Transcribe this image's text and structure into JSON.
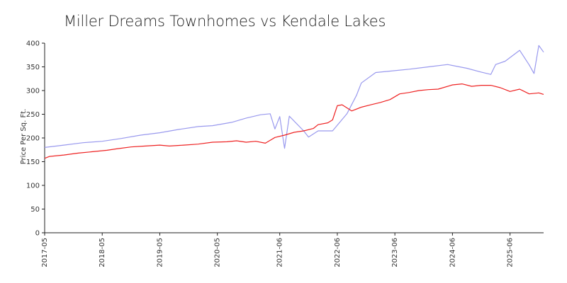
{
  "chart_data": {
    "type": "line",
    "title": "Miller Dreams Townhomes vs Kendale Lakes",
    "xlabel": "",
    "ylabel": "Price Per Sq. Ft.",
    "ylim": [
      0,
      400
    ],
    "yticks": [
      0,
      50,
      100,
      150,
      200,
      250,
      300,
      350,
      400
    ],
    "xlim": [
      "2017-05",
      "2026-01"
    ],
    "xtick_labels": [
      "2017-05",
      "2018-05",
      "2019-05",
      "2020-05",
      "2021-06",
      "2022-06",
      "2023-06",
      "2024-06",
      "2025-06"
    ],
    "grid": false,
    "series": [
      {
        "color": "#9999ee",
        "points": [
          [
            "2017-05",
            180
          ],
          [
            "2017-09",
            185
          ],
          [
            "2018-01",
            190
          ],
          [
            "2018-05",
            193
          ],
          [
            "2018-09",
            199
          ],
          [
            "2019-01",
            206
          ],
          [
            "2019-05",
            211
          ],
          [
            "2019-09",
            218
          ],
          [
            "2020-01",
            224
          ],
          [
            "2020-04",
            226
          ],
          [
            "2020-08",
            233
          ],
          [
            "2020-11",
            242
          ],
          [
            "2021-02",
            249
          ],
          [
            "2021-04",
            251
          ],
          [
            "2021-05",
            219
          ],
          [
            "2021-06",
            245
          ],
          [
            "2021-07",
            178
          ],
          [
            "2021-08",
            246
          ],
          [
            "2021-11",
            215
          ],
          [
            "2021-12",
            202
          ],
          [
            "2022-02",
            215
          ],
          [
            "2022-05",
            215
          ],
          [
            "2022-08",
            251
          ],
          [
            "2022-10",
            290
          ],
          [
            "2022-11",
            316
          ],
          [
            "2023-02",
            338
          ],
          [
            "2023-05",
            341
          ],
          [
            "2023-09",
            345
          ],
          [
            "2024-01",
            350
          ],
          [
            "2024-05",
            355
          ],
          [
            "2024-09",
            347
          ],
          [
            "2024-12",
            339
          ],
          [
            "2025-02",
            334
          ],
          [
            "2025-03",
            355
          ],
          [
            "2025-05",
            362
          ],
          [
            "2025-08",
            385
          ],
          [
            "2025-10",
            354
          ],
          [
            "2025-11",
            336
          ],
          [
            "2025-12",
            395
          ],
          [
            "2026-01",
            381
          ]
        ]
      },
      {
        "color": "#ee2222",
        "points": [
          [
            "2017-05",
            157
          ],
          [
            "2017-06",
            161
          ],
          [
            "2017-09",
            164
          ],
          [
            "2017-12",
            168
          ],
          [
            "2018-03",
            171
          ],
          [
            "2018-06",
            174
          ],
          [
            "2018-08",
            177
          ],
          [
            "2018-11",
            181
          ],
          [
            "2019-02",
            183
          ],
          [
            "2019-05",
            185
          ],
          [
            "2019-07",
            183
          ],
          [
            "2019-10",
            185
          ],
          [
            "2020-01",
            187
          ],
          [
            "2020-04",
            191
          ],
          [
            "2020-07",
            192
          ],
          [
            "2020-09",
            194
          ],
          [
            "2020-11",
            191
          ],
          [
            "2021-01",
            193
          ],
          [
            "2021-03",
            189
          ],
          [
            "2021-05",
            201
          ],
          [
            "2021-07",
            206
          ],
          [
            "2021-09",
            212
          ],
          [
            "2021-11",
            215
          ],
          [
            "2022-01",
            220
          ],
          [
            "2022-02",
            228
          ],
          [
            "2022-04",
            232
          ],
          [
            "2022-05",
            238
          ],
          [
            "2022-06",
            268
          ],
          [
            "2022-07",
            270
          ],
          [
            "2022-09",
            257
          ],
          [
            "2022-11",
            265
          ],
          [
            "2023-01",
            270
          ],
          [
            "2023-03",
            275
          ],
          [
            "2023-05",
            281
          ],
          [
            "2023-07",
            293
          ],
          [
            "2023-09",
            296
          ],
          [
            "2023-11",
            300
          ],
          [
            "2024-01",
            302
          ],
          [
            "2024-03",
            303
          ],
          [
            "2024-06",
            312
          ],
          [
            "2024-08",
            314
          ],
          [
            "2024-10",
            309
          ],
          [
            "2024-12",
            311
          ],
          [
            "2025-02",
            311
          ],
          [
            "2025-04",
            306
          ],
          [
            "2025-06",
            298
          ],
          [
            "2025-08",
            303
          ],
          [
            "2025-10",
            293
          ],
          [
            "2025-12",
            295
          ],
          [
            "2026-01",
            292
          ]
        ]
      }
    ]
  }
}
